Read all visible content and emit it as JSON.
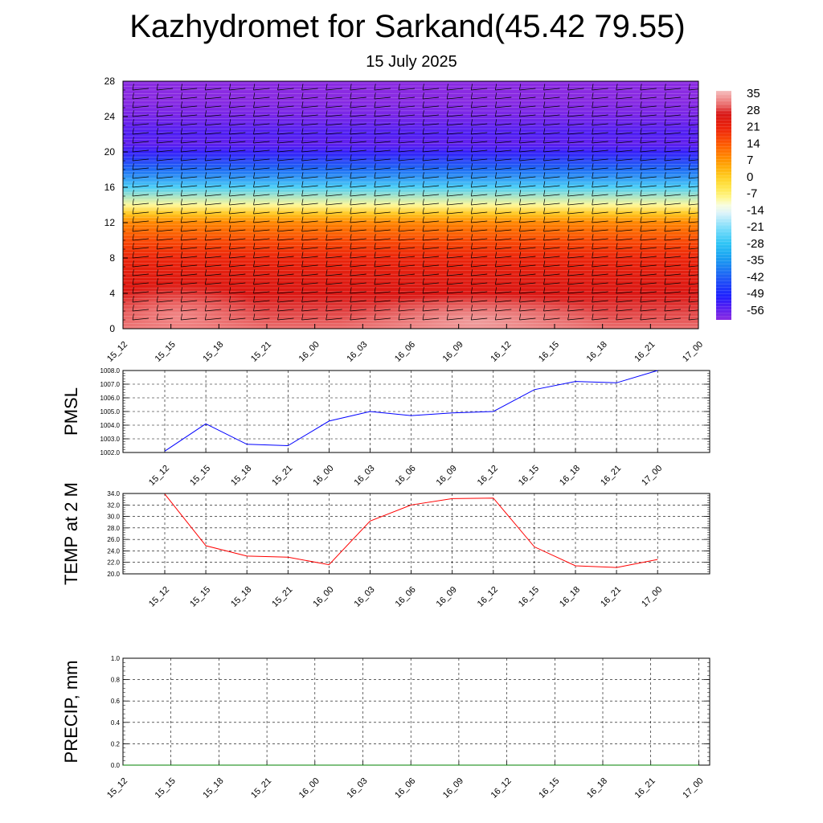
{
  "title": "Kazhydromet for Sarkand(45.42 79.55)",
  "subtitle": "15 July 2025",
  "chart_data": [
    {
      "type": "heatmap",
      "description_key": "vertical cross-section",
      "x_ticks": [
        "15_12",
        "15_15",
        "15_18",
        "15_21",
        "16_00",
        "16_03",
        "16_06",
        "16_09",
        "16_12",
        "16_15",
        "16_18",
        "16_21",
        "17_00"
      ],
      "y_ticks": [
        0,
        4,
        8,
        12,
        16,
        20,
        24,
        28
      ],
      "ylim": [
        0,
        28
      ],
      "colorbar_labels": [
        "35",
        "28",
        "21",
        "14",
        "7",
        "0",
        "-7",
        "-14",
        "-21",
        "-28",
        "-35",
        "-42",
        "-49",
        "-56"
      ],
      "colorbar_range": [
        -60,
        38
      ],
      "profile_y": [
        0,
        2,
        4,
        6,
        8,
        10,
        12,
        13,
        14,
        16,
        18,
        20,
        21,
        22,
        24,
        26,
        28
      ],
      "profile_values": [
        32,
        30,
        27,
        25,
        22,
        17,
        10,
        2,
        -8,
        -25,
        -40,
        -52,
        -56,
        -54,
        -58,
        -60,
        -60
      ],
      "has_wind_barbs": true
    },
    {
      "type": "line",
      "ylabel": "PMSL",
      "categories": [
        "15_12",
        "15_15",
        "15_18",
        "15_21",
        "16_00",
        "16_03",
        "16_06",
        "16_09",
        "16_12",
        "16_15",
        "16_18",
        "16_21",
        "17_00"
      ],
      "y_ticks": [
        "1002.0",
        "1003.0",
        "1004.0",
        "1005.0",
        "1006.0",
        "1007.0",
        "1008.0"
      ],
      "ylim": [
        1002,
        1008
      ],
      "series": [
        {
          "values": [
            1002.1,
            1004.1,
            1002.6,
            1002.5,
            1004.3,
            1005.0,
            1004.7,
            1004.9,
            1005.0,
            1006.6,
            1007.2,
            1007.1,
            1008.0
          ]
        }
      ],
      "color": "#0000ff",
      "grid": true
    },
    {
      "type": "line",
      "ylabel": "TEMP at 2 M",
      "categories": [
        "15_12",
        "15_15",
        "15_18",
        "15_21",
        "16_00",
        "16_03",
        "16_06",
        "16_09",
        "16_12",
        "16_15",
        "16_18",
        "16_21",
        "17_00"
      ],
      "y_ticks": [
        "20.0",
        "22.0",
        "24.0",
        "26.0",
        "28.0",
        "30.0",
        "32.0",
        "34.0"
      ],
      "ylim": [
        20,
        34
      ],
      "series": [
        {
          "values": [
            33.9,
            24.9,
            23.1,
            22.9,
            21.6,
            29.2,
            32.0,
            33.1,
            33.2,
            24.7,
            21.4,
            21.1,
            22.5
          ]
        }
      ],
      "color": "#ff0000",
      "grid": true
    },
    {
      "type": "line",
      "ylabel": "PRECIP, mm",
      "categories": [
        "15_12",
        "15_15",
        "15_18",
        "15_21",
        "16_00",
        "16_03",
        "16_06",
        "16_09",
        "16_12",
        "16_15",
        "16_18",
        "16_21",
        "17_00"
      ],
      "y_ticks": [
        "0.0",
        "0.2",
        "0.4",
        "0.6",
        "0.8",
        "1.0"
      ],
      "ylim": [
        0,
        1
      ],
      "series": [
        {
          "values": [
            0,
            0,
            0,
            0,
            0,
            0,
            0,
            0,
            0,
            0,
            0,
            0,
            0
          ]
        }
      ],
      "color": "#008000",
      "grid": true
    }
  ]
}
